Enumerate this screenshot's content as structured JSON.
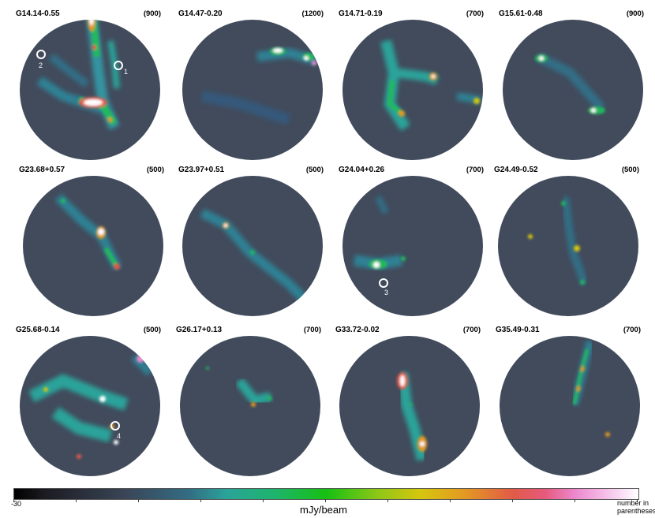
{
  "panels": [
    {
      "name": "G14.14-0.55",
      "scale": "(900)"
    },
    {
      "name": "G14.47-0.20",
      "scale": "(1200)"
    },
    {
      "name": "G14.71-0.19",
      "scale": "(700)"
    },
    {
      "name": "G15.61-0.48",
      "scale": "(900)"
    },
    {
      "name": "G23.68+0.57",
      "scale": "(500)"
    },
    {
      "name": "G23.97+0.51",
      "scale": "(500)"
    },
    {
      "name": "G24.04+0.26",
      "scale": "(700)"
    },
    {
      "name": "G24.49-0.52",
      "scale": "(500)"
    },
    {
      "name": "G25.68-0.14",
      "scale": "(500)"
    },
    {
      "name": "G26.17+0.13",
      "scale": "(700)"
    },
    {
      "name": "G33.72-0.02",
      "scale": "(700)"
    },
    {
      "name": "G35.49-0.31",
      "scale": "(700)"
    }
  ],
  "markers": [
    "1",
    "2",
    "3",
    "4"
  ],
  "colorbar": {
    "min_label": "-30",
    "unit": "mJy/beam",
    "max_label_line1": "number in",
    "max_label_line2": "parentheses"
  }
}
